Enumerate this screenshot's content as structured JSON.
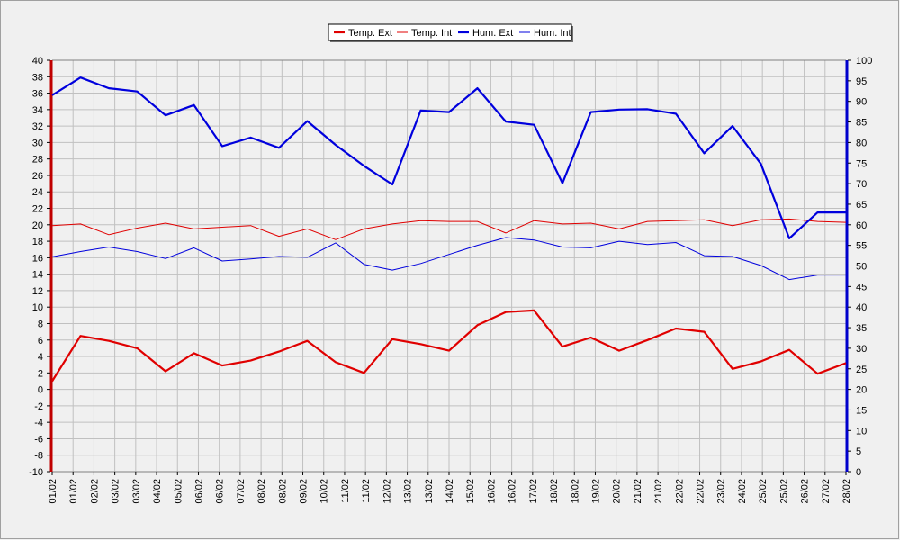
{
  "chart_data": {
    "type": "line",
    "categories": [
      "01/02",
      "01/02",
      "02/02",
      "03/02",
      "03/02",
      "04/02",
      "05/02",
      "06/02",
      "06/02",
      "07/02",
      "08/02",
      "08/02",
      "09/02",
      "10/02",
      "11/02",
      "11/02",
      "12/02",
      "13/02",
      "13/02",
      "14/02",
      "15/02",
      "16/02",
      "16/02",
      "17/02",
      "18/02",
      "18/02",
      "19/02",
      "20/02",
      "21/02",
      "21/02",
      "22/02",
      "22/02",
      "23/02",
      "24/02",
      "25/02",
      "25/02",
      "26/02",
      "27/02",
      "28/02"
    ],
    "grid": true,
    "legend_position": "top-center",
    "axes": {
      "left": {
        "min": -10,
        "max": 40,
        "step": 2,
        "color": "#c00000"
      },
      "right": {
        "min": 0,
        "max": 100,
        "step": 5,
        "color": "#0000cc"
      }
    },
    "series": [
      {
        "name": "Temp. Ext",
        "axis": "left",
        "color": "#e00000",
        "width": 2.2,
        "x": [
          0,
          1,
          2,
          3,
          4,
          5,
          6,
          7,
          8,
          9,
          10,
          11,
          12,
          13,
          14,
          15,
          16,
          17,
          18,
          19,
          20,
          21,
          22,
          23,
          24,
          25,
          26,
          27,
          28
        ],
        "values": [
          1.0,
          6.5,
          5.9,
          5.0,
          2.2,
          4.4,
          2.9,
          3.5,
          4.6,
          5.9,
          3.3,
          2.0,
          6.1,
          5.5,
          4.7,
          7.8,
          9.4,
          9.6,
          5.2,
          6.3,
          4.7,
          6.0,
          7.4,
          7.0,
          2.5,
          3.4,
          4.8,
          1.9,
          3.2
        ]
      },
      {
        "name": "Temp. Int",
        "axis": "left",
        "color": "#e00000",
        "width": 1,
        "x": [
          0,
          1,
          2,
          3,
          4,
          5,
          6,
          7,
          8,
          9,
          10,
          11,
          12,
          13,
          14,
          15,
          16,
          17,
          18,
          19,
          20,
          21,
          22,
          23,
          24,
          25,
          26,
          27,
          28
        ],
        "values": [
          19.9,
          20.1,
          18.8,
          19.6,
          20.2,
          19.5,
          19.7,
          19.9,
          18.6,
          19.5,
          18.2,
          19.5,
          20.1,
          20.5,
          20.4,
          20.4,
          19.0,
          20.5,
          20.1,
          20.2,
          19.5,
          20.4,
          20.5,
          20.6,
          19.9,
          20.6,
          20.7,
          20.4,
          20.3
        ]
      },
      {
        "name": "Hum. Ext",
        "axis": "right",
        "color": "#0000dd",
        "width": 2.2,
        "x": [
          0,
          1,
          2,
          3,
          4,
          5,
          6,
          7,
          8,
          9,
          10,
          11,
          12,
          13,
          14,
          15,
          16,
          17,
          18,
          19,
          20,
          21,
          22,
          23,
          24,
          25,
          26,
          27,
          28
        ],
        "values": [
          91.5,
          95.8,
          93.2,
          92.4,
          86.6,
          89.1,
          79.1,
          81.2,
          78.7,
          85.2,
          79.4,
          74.3,
          69.8,
          87.8,
          87.4,
          93.2,
          85.1,
          84.3,
          70.1,
          87.4,
          88.0,
          88.1,
          87.0,
          77.4,
          84.0,
          74.8,
          56.7,
          63.0,
          63.0
        ]
      },
      {
        "name": "Hum. Int",
        "axis": "right",
        "color": "#0000dd",
        "width": 1,
        "x": [
          0,
          1,
          2,
          3,
          4,
          5,
          6,
          7,
          8,
          9,
          10,
          11,
          12,
          13,
          14,
          15,
          16,
          17,
          18,
          19,
          20,
          21,
          22,
          23,
          24,
          25,
          26,
          27,
          28
        ],
        "values": [
          52.2,
          53.5,
          54.6,
          53.5,
          51.8,
          54.4,
          51.2,
          51.7,
          52.3,
          52.1,
          55.6,
          50.4,
          49.0,
          50.6,
          52.8,
          55.0,
          56.9,
          56.3,
          54.6,
          54.4,
          56.0,
          55.2,
          55.7,
          52.5,
          52.3,
          50.1,
          46.7,
          47.8,
          47.8
        ]
      }
    ]
  }
}
